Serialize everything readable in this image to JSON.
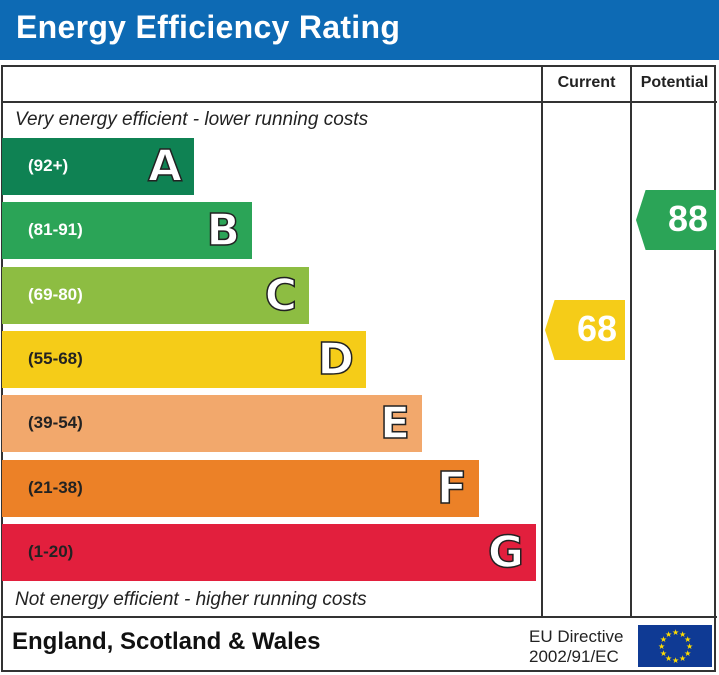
{
  "header": {
    "title": "Energy Efficiency Rating"
  },
  "columns": {
    "current": "Current",
    "potential": "Potential"
  },
  "notes": {
    "top": "Very energy efficient - lower running costs",
    "bottom": "Not energy efficient - higher running costs"
  },
  "footer": {
    "region": "England, Scotland & Wales",
    "directive_line1": "EU Directive",
    "directive_line2": "2002/91/EC",
    "flag_icon": "eu-flag-icon"
  },
  "chart_data": {
    "type": "bar",
    "title": "Energy Efficiency Rating",
    "bands": [
      {
        "letter": "A",
        "range": "(92+)",
        "color": "#0f8253"
      },
      {
        "letter": "B",
        "range": "(81-91)",
        "color": "#2ba457"
      },
      {
        "letter": "C",
        "range": "(69-80)",
        "color": "#8dbd42"
      },
      {
        "letter": "D",
        "range": "(55-68)",
        "color": "#f5cc18"
      },
      {
        "letter": "E",
        "range": "(39-54)",
        "color": "#f2a86c"
      },
      {
        "letter": "F",
        "range": "(21-38)",
        "color": "#ec8127"
      },
      {
        "letter": "G",
        "range": "(1-20)",
        "color": "#e21f3d"
      }
    ],
    "current": {
      "value": 68,
      "label": "68",
      "color": "#f5cc18"
    },
    "potential": {
      "value": 88,
      "label": "88",
      "color": "#2ba457"
    }
  }
}
